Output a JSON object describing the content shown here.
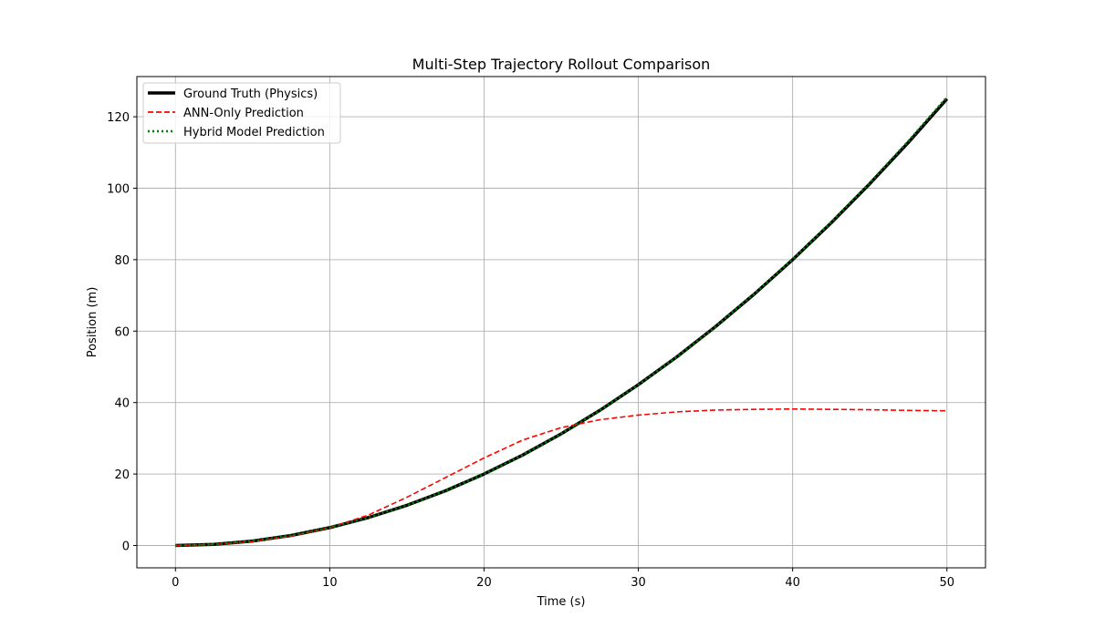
{
  "chart_data": {
    "type": "line",
    "title": "Multi-Step Trajectory Rollout Comparison",
    "xlabel": "Time (s)",
    "ylabel": "Position (m)",
    "xlim": [
      -2.5,
      52.5
    ],
    "ylim": [
      -6.25,
      131.25
    ],
    "xticks": [
      0,
      10,
      20,
      30,
      40,
      50
    ],
    "yticks": [
      0,
      20,
      40,
      60,
      80,
      100,
      120
    ],
    "grid": true,
    "legend_position": "upper-left",
    "series": [
      {
        "name": "Ground Truth (Physics)",
        "color": "#000000",
        "style": "solid",
        "x": [
          0,
          2.5,
          5,
          7.5,
          10,
          12.5,
          15,
          17.5,
          20,
          22.5,
          25,
          27.5,
          30,
          32.5,
          35,
          37.5,
          40,
          42.5,
          45,
          47.5,
          50
        ],
        "y": [
          0,
          0.31,
          1.25,
          2.81,
          5.0,
          7.81,
          11.25,
          15.31,
          20.0,
          25.31,
          31.25,
          37.81,
          45.0,
          52.81,
          61.25,
          70.31,
          80.0,
          90.31,
          101.25,
          112.81,
          125.0
        ]
      },
      {
        "name": "ANN-Only Prediction",
        "color": "#ff0000",
        "style": "dashed",
        "x": [
          0,
          2.5,
          5,
          7.5,
          10,
          12.5,
          15,
          17.5,
          20,
          22.5,
          25,
          27.5,
          30,
          32.5,
          35,
          37.5,
          40,
          42.5,
          45,
          47.5,
          50
        ],
        "y": [
          0,
          0.3,
          1.1,
          2.6,
          5.0,
          8.5,
          13.5,
          19.0,
          24.5,
          29.5,
          33.0,
          35.2,
          36.5,
          37.4,
          37.9,
          38.1,
          38.2,
          38.1,
          38.0,
          37.8,
          37.7
        ]
      },
      {
        "name": "Hybrid Model Prediction",
        "color": "#008000",
        "style": "dotted",
        "x": [
          0,
          2.5,
          5,
          7.5,
          10,
          12.5,
          15,
          17.5,
          20,
          22.5,
          25,
          27.5,
          30,
          32.5,
          35,
          37.5,
          40,
          42.5,
          45,
          47.5,
          50
        ],
        "y": [
          0,
          0.31,
          1.25,
          2.81,
          5.0,
          7.81,
          11.25,
          15.31,
          20.0,
          25.31,
          31.25,
          37.81,
          45.0,
          52.81,
          61.25,
          70.4,
          80.1,
          90.5,
          101.5,
          113.2,
          125.5
        ]
      }
    ]
  }
}
